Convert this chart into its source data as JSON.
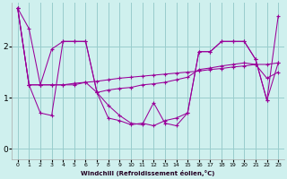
{
  "xlabel": "Windchill (Refroidissement éolien,°C)",
  "background_color": "#cff0ee",
  "grid_color": "#99cccc",
  "line_color": "#990099",
  "x_ticks": [
    0,
    1,
    2,
    3,
    4,
    5,
    6,
    7,
    8,
    9,
    10,
    11,
    12,
    13,
    14,
    15,
    16,
    17,
    18,
    19,
    20,
    21,
    22,
    23
  ],
  "y_ticks": [
    0,
    1,
    2
  ],
  "ylim": [
    -0.2,
    2.85
  ],
  "xlim": [
    -0.5,
    23.5
  ],
  "series": [
    [
      2.75,
      2.35,
      1.25,
      1.95,
      2.1,
      2.1,
      2.1,
      1.1,
      0.85,
      0.65,
      0.5,
      0.47,
      0.9,
      0.5,
      0.45,
      0.7,
      1.9,
      1.9,
      2.1,
      2.1,
      2.1,
      1.75,
      0.95,
      2.6
    ],
    [
      2.75,
      1.25,
      1.25,
      1.25,
      1.25,
      1.28,
      1.3,
      1.32,
      1.35,
      1.38,
      1.4,
      1.42,
      1.44,
      1.46,
      1.48,
      1.5,
      1.52,
      1.55,
      1.57,
      1.6,
      1.62,
      1.65,
      1.65,
      1.68
    ],
    [
      2.75,
      1.25,
      0.7,
      0.65,
      2.1,
      2.1,
      2.1,
      1.1,
      0.6,
      0.55,
      0.47,
      0.5,
      0.45,
      0.55,
      0.6,
      0.7,
      1.9,
      1.9,
      2.1,
      2.1,
      2.1,
      1.75,
      0.95,
      1.68
    ],
    [
      2.75,
      1.25,
      1.25,
      1.25,
      1.25,
      1.25,
      1.3,
      1.1,
      1.15,
      1.18,
      1.2,
      1.25,
      1.27,
      1.3,
      1.35,
      1.4,
      1.55,
      1.58,
      1.62,
      1.65,
      1.68,
      1.65,
      1.38,
      1.5
    ]
  ]
}
